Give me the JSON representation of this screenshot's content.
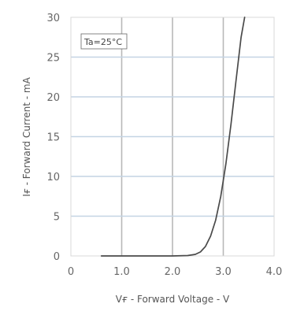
{
  "chart_data": {
    "type": "line",
    "title": "",
    "xlabel": "Vғ - Forward Voltage - V",
    "ylabel": "Iғ - Forward Current - mA",
    "xlim": [
      0,
      4.0
    ],
    "ylim": [
      0,
      30
    ],
    "x_ticks": [
      "0",
      "1.0",
      "2.0",
      "3.0",
      "4.0"
    ],
    "y_ticks": [
      "0",
      "5",
      "10",
      "15",
      "20",
      "25",
      "30"
    ],
    "grid": true,
    "annotation": "Ta=25°C",
    "series": [
      {
        "x": [
          0.6,
          1.0,
          1.5,
          2.0,
          2.3,
          2.45,
          2.55,
          2.65,
          2.75,
          2.85,
          2.95,
          3.05,
          3.15,
          3.25,
          3.35,
          3.42
        ],
        "y": [
          0,
          0,
          0,
          0,
          0.05,
          0.2,
          0.5,
          1.2,
          2.5,
          4.5,
          7.5,
          11.5,
          16.5,
          22.0,
          27.5,
          30.0
        ]
      }
    ]
  }
}
